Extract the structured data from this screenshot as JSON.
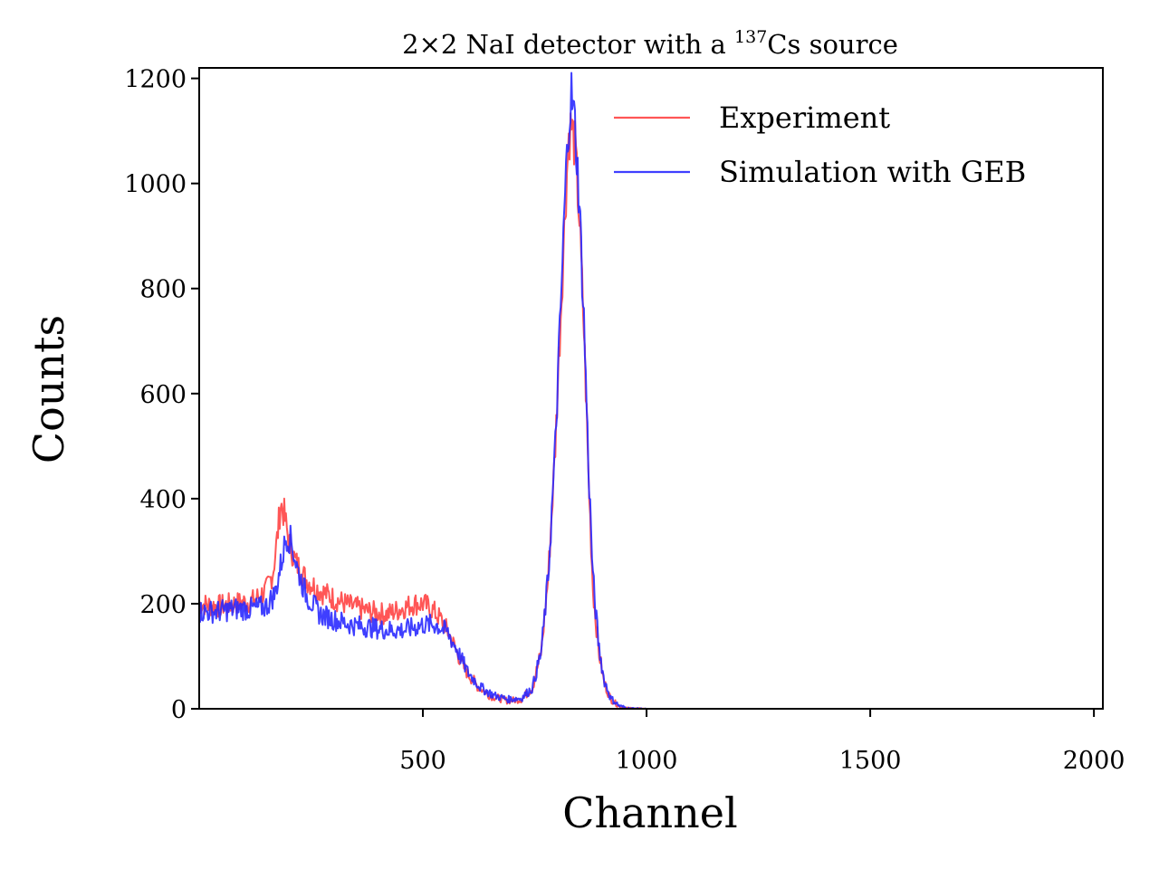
{
  "chart_data": {
    "type": "line",
    "title": {
      "prefix": "2×2 NaI detector with a ",
      "superscript": "137",
      "suffix": "Cs source"
    },
    "xlabel": "Channel",
    "ylabel": "Counts",
    "xlim": [
      0,
      2020
    ],
    "ylim": [
      0,
      1220
    ],
    "xticks": [
      500,
      1000,
      1500,
      2000
    ],
    "yticks": [
      0,
      200,
      400,
      600,
      800,
      1000,
      1200
    ],
    "grid": false,
    "legend_position": "top-right",
    "colors": {
      "experiment": "#ff4444",
      "simulation": "#2a2aff"
    },
    "series": [
      {
        "name": "Experiment",
        "color": "#ff4444",
        "points": [
          [
            0,
            200
          ],
          [
            40,
            195
          ],
          [
            80,
            200
          ],
          [
            120,
            205
          ],
          [
            150,
            225
          ],
          [
            165,
            260
          ],
          [
            175,
            330
          ],
          [
            182,
            390
          ],
          [
            190,
            370
          ],
          [
            200,
            320
          ],
          [
            215,
            280
          ],
          [
            240,
            245
          ],
          [
            270,
            225
          ],
          [
            300,
            210
          ],
          [
            340,
            195
          ],
          [
            380,
            185
          ],
          [
            420,
            180
          ],
          [
            450,
            190
          ],
          [
            480,
            200
          ],
          [
            500,
            200
          ],
          [
            520,
            190
          ],
          [
            545,
            165
          ],
          [
            565,
            130
          ],
          [
            590,
            80
          ],
          [
            620,
            45
          ],
          [
            650,
            25
          ],
          [
            690,
            15
          ],
          [
            720,
            18
          ],
          [
            745,
            40
          ],
          [
            765,
            110
          ],
          [
            780,
            250
          ],
          [
            795,
            480
          ],
          [
            808,
            750
          ],
          [
            818,
            950
          ],
          [
            826,
            1090
          ],
          [
            832,
            1110
          ],
          [
            840,
            1070
          ],
          [
            850,
            930
          ],
          [
            860,
            720
          ],
          [
            870,
            450
          ],
          [
            880,
            230
          ],
          [
            893,
            110
          ],
          [
            905,
            50
          ],
          [
            920,
            18
          ],
          [
            940,
            4
          ],
          [
            960,
            1
          ],
          [
            1000,
            0
          ],
          [
            1500,
            0
          ],
          [
            2000,
            0
          ]
        ]
      },
      {
        "name": "Simulation with GEB",
        "color": "#2a2aff",
        "points": [
          [
            0,
            185
          ],
          [
            40,
            185
          ],
          [
            80,
            190
          ],
          [
            120,
            190
          ],
          [
            150,
            195
          ],
          [
            170,
            220
          ],
          [
            185,
            285
          ],
          [
            195,
            330
          ],
          [
            205,
            320
          ],
          [
            220,
            265
          ],
          [
            240,
            215
          ],
          [
            270,
            180
          ],
          [
            300,
            170
          ],
          [
            340,
            160
          ],
          [
            380,
            155
          ],
          [
            420,
            150
          ],
          [
            460,
            150
          ],
          [
            500,
            160
          ],
          [
            530,
            160
          ],
          [
            555,
            145
          ],
          [
            575,
            115
          ],
          [
            600,
            70
          ],
          [
            630,
            40
          ],
          [
            660,
            25
          ],
          [
            690,
            18
          ],
          [
            720,
            20
          ],
          [
            745,
            40
          ],
          [
            765,
            110
          ],
          [
            780,
            250
          ],
          [
            795,
            480
          ],
          [
            808,
            760
          ],
          [
            818,
            980
          ],
          [
            826,
            1120
          ],
          [
            832,
            1170
          ],
          [
            840,
            1110
          ],
          [
            850,
            960
          ],
          [
            860,
            740
          ],
          [
            870,
            470
          ],
          [
            880,
            250
          ],
          [
            893,
            120
          ],
          [
            905,
            55
          ],
          [
            920,
            20
          ],
          [
            940,
            5
          ],
          [
            960,
            1
          ],
          [
            1000,
            0
          ],
          [
            1500,
            0
          ],
          [
            2000,
            0
          ]
        ]
      }
    ]
  }
}
